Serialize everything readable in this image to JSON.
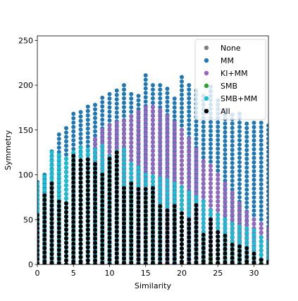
{
  "chart_data": {
    "type": "scatter",
    "xlabel": "Similarity",
    "ylabel": "Symmetry",
    "xlim": [
      0,
      32
    ],
    "ylim": [
      0,
      255
    ],
    "x_ticks": [
      0,
      5,
      10,
      15,
      20,
      25,
      30
    ],
    "y_ticks": [
      0,
      50,
      100,
      150,
      200,
      250
    ],
    "grid": false,
    "legend_position": "top-right",
    "series": [
      {
        "name": "None",
        "color": "#7f7f7f",
        "x": [],
        "y": []
      },
      {
        "name": "MM",
        "color": "#1f77b4",
        "x": [
          0,
          1,
          2,
          3,
          4,
          5,
          6,
          7,
          8,
          9,
          10,
          11,
          12,
          13,
          14,
          15,
          16,
          17,
          18,
          19,
          20,
          21,
          22,
          23,
          24,
          25,
          26,
          27,
          28,
          29,
          30,
          31,
          32
        ],
        "y": [
          92,
          100,
          126,
          145,
          152,
          168,
          170,
          176,
          178,
          186,
          190,
          194,
          200,
          190,
          188,
          211,
          200,
          200,
          196,
          185,
          209,
          200,
          194,
          188,
          198,
          183,
          172,
          167,
          168,
          157,
          158,
          158,
          155
        ]
      },
      {
        "name": "KI+MM",
        "color": "#9467bd",
        "x": [
          8,
          9,
          10,
          11,
          12,
          13,
          14,
          15,
          16,
          17,
          18,
          19,
          20,
          21,
          22,
          23,
          24,
          25,
          26,
          27,
          28,
          29,
          30,
          31,
          32
        ],
        "y": [
          140,
          150,
          155,
          158,
          160,
          165,
          170,
          175,
          176,
          172,
          165,
          158,
          150,
          140,
          128,
          115,
          110,
          100,
          90,
          80,
          68,
          58,
          50,
          45,
          40
        ]
      },
      {
        "name": "SMB",
        "color": "#2ca02c",
        "x": [
          24,
          25,
          26,
          27,
          28,
          29,
          30,
          31,
          32
        ],
        "y": [
          8,
          6,
          5,
          4,
          3,
          3,
          2,
          2,
          2
        ]
      },
      {
        "name": "SMB+MM",
        "color": "#17becf",
        "x": [
          0,
          1,
          2,
          3,
          4,
          5,
          6,
          7,
          8,
          9,
          10,
          11,
          12,
          13,
          14,
          15,
          16,
          17,
          18,
          19,
          20,
          21,
          22,
          23,
          24,
          25,
          26,
          27,
          28,
          29,
          30,
          31,
          32
        ],
        "y": [
          90,
          98,
          125,
          122,
          118,
          125,
          130,
          128,
          128,
          132,
          120,
          126,
          128,
          112,
          108,
          100,
          98,
          96,
          94,
          90,
          86,
          80,
          75,
          70,
          60,
          55,
          50,
          45,
          42,
          40,
          38,
          30,
          25
        ]
      },
      {
        "name": "All",
        "color": "#000000",
        "x": [
          0,
          1,
          2,
          3,
          4,
          5,
          6,
          7,
          8,
          9,
          10,
          11,
          12,
          13,
          14,
          15,
          16,
          17,
          18,
          19,
          20,
          21,
          22,
          23,
          24,
          25,
          26,
          27,
          28,
          29,
          30,
          31,
          32
        ],
        "y": [
          55,
          77,
          90,
          70,
          68,
          121,
          116,
          117,
          112,
          100,
          118,
          125,
          85,
          90,
          84,
          84,
          85,
          65,
          60,
          65,
          57,
          50,
          66,
          33,
          50,
          36,
          32,
          22,
          20,
          18,
          12,
          5,
          3
        ]
      }
    ]
  }
}
